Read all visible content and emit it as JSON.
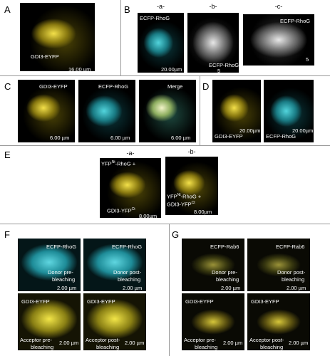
{
  "panels": [
    {
      "label": "A",
      "images": [
        {
          "texts": [
            "GDI3-EYFP",
            "16.00 µm"
          ]
        }
      ]
    },
    {
      "label": "B",
      "images": [
        {
          "title": "-a-",
          "texts": [
            "ECFP-RhoG",
            "20.00µm"
          ]
        },
        {
          "title": "-b-",
          "texts": [
            "ECFP-RhoG",
            "5"
          ]
        },
        {
          "title": "-c-",
          "texts": [
            "ECFP-RhoG",
            "5"
          ]
        }
      ]
    },
    {
      "label": "C",
      "images": [
        {
          "texts": [
            "GDI3-EYFP",
            "6.00 µm"
          ]
        },
        {
          "texts": [
            "ECFP-RhoG",
            "6.00 µm"
          ]
        },
        {
          "texts": [
            "Merge",
            "6.00 µm"
          ]
        }
      ]
    },
    {
      "label": "D",
      "images": [
        {
          "texts": [
            "GDI3-EYFP",
            "20.00µm"
          ]
        },
        {
          "texts": [
            "ECFP-RhoG",
            "20.00µm"
          ]
        }
      ]
    },
    {
      "label": "E",
      "images": [
        {
          "title": "-a-",
          "texts": [
            [
              "YFP",
              "Nt",
              "-RhoG +"
            ],
            [
              "GDI3-YFP",
              "Ct"
            ],
            "8.00µm"
          ]
        },
        {
          "title": "-b-",
          "texts": [
            [
              "YFP",
              "Nt",
              "-RhoG +"
            ],
            [
              "GDI3-YFP",
              "Ct"
            ],
            "8.00µm"
          ]
        }
      ]
    },
    {
      "label": "F",
      "images": [
        {
          "texts": [
            "ECFP-RhoG",
            "Donor pre-",
            "bleaching",
            "2.00 µm"
          ]
        },
        {
          "texts": [
            "ECFP-RhoG",
            "Donor post-",
            "bleaching",
            "2.00 µm"
          ]
        },
        {
          "texts": [
            "GDI3-EYFP",
            "Acceptor pre-",
            "bleaching",
            "2.00 µm"
          ]
        },
        {
          "texts": [
            "GDI3-EYFP",
            "Acceptor post-",
            "bleaching",
            "2.00 µm"
          ]
        }
      ]
    },
    {
      "label": "G",
      "images": [
        {
          "texts": [
            "ECFP-Rab6",
            "Donor pre-",
            "bleaching",
            "2.00 µm"
          ]
        },
        {
          "texts": [
            "ECFP-Rab6",
            "Donor post-",
            "bleaching",
            "2.00 µm"
          ]
        },
        {
          "texts": [
            "GDI3-EYFP",
            "Acceptor pre-",
            "bleaching",
            "2.00 µm"
          ]
        },
        {
          "texts": [
            "GDI3-EYFP",
            "Acceptor post-",
            "bleaching",
            "2.00 µm"
          ]
        }
      ]
    }
  ]
}
